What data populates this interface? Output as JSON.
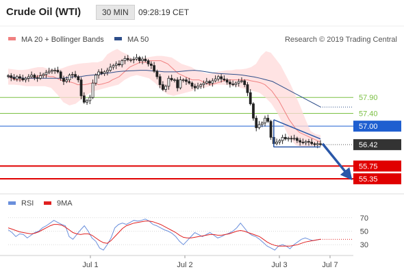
{
  "header": {
    "symbol": "Crude Oil (WTI)",
    "timeframe": "30 MIN",
    "time": "09:28:19 CET"
  },
  "legend": {
    "items": [
      {
        "label": "MA 20 + Bollinger Bands",
        "color": "#f08080"
      },
      {
        "label": "MA 50",
        "color": "#2e4e8a"
      }
    ],
    "credit": "Research © 2019 Trading Central"
  },
  "rsi_legend": {
    "items": [
      {
        "label": "RSI",
        "color": "#6a8fdc"
      },
      {
        "label": "9MA",
        "color": "#e02020"
      }
    ]
  },
  "colors": {
    "support": "#e00000",
    "pivot": "#1f5fd0",
    "resistance": "#7bc043",
    "price": "#333333",
    "arrow": "#2a57a8"
  },
  "chart_data": [
    {
      "type": "line",
      "name": "price",
      "x_labels": [
        "Jul 1",
        "Jul 2",
        "Jul 3",
        "Jul 7"
      ],
      "ylim": [
        54.9,
        59.45
      ],
      "levels": [
        {
          "value": 57.9,
          "label": "57.90",
          "role": "resistance"
        },
        {
          "value": 57.4,
          "label": "57.40",
          "role": "resistance"
        },
        {
          "value": 57.0,
          "label": "57.00",
          "role": "pivot"
        },
        {
          "value": 56.42,
          "label": "56.42",
          "role": "last-price"
        },
        {
          "value": 55.75,
          "label": "55.75",
          "role": "support"
        },
        {
          "value": 55.35,
          "label": "55.35",
          "role": "support"
        }
      ],
      "series": [
        {
          "name": "Price",
          "values": [
            58.58,
            58.52,
            58.48,
            58.55,
            58.5,
            58.45,
            58.5,
            58.55,
            58.6,
            58.52,
            58.5,
            58.58,
            58.62,
            58.68,
            58.72,
            58.75,
            58.75,
            58.7,
            58.5,
            58.4,
            58.45,
            58.6,
            58.62,
            58.55,
            58.45,
            57.95,
            57.75,
            57.8,
            57.9,
            58.35,
            58.6,
            58.7,
            58.65,
            58.7,
            58.75,
            58.85,
            58.9,
            58.95,
            58.92,
            59.05,
            59.12,
            59.08,
            59.08,
            59.1,
            59.15,
            59.05,
            59.1,
            59.05,
            58.95,
            58.9,
            58.72,
            58.55,
            58.3,
            58.15,
            58.25,
            58.5,
            58.45,
            58.45,
            58.2,
            58.45,
            58.45,
            58.4,
            58.35,
            58.25,
            58.2,
            58.25,
            58.3,
            58.35,
            58.4,
            58.35,
            58.42,
            58.48,
            58.55,
            58.48,
            58.45,
            58.38,
            58.32,
            58.3,
            58.35,
            58.4,
            58.42,
            58.3,
            58.05,
            57.7,
            57.25,
            56.95,
            57.05,
            57.1,
            57.25,
            57.15,
            56.65,
            56.45,
            56.5,
            56.55,
            56.65,
            56.6,
            56.62,
            56.6,
            56.62,
            56.55,
            56.5,
            56.48,
            56.52,
            56.5,
            56.45,
            56.42,
            56.45,
            56.42
          ]
        },
        {
          "name": "MA 20",
          "values": [
            58.55,
            58.5,
            58.45,
            58.45,
            58.45,
            58.48,
            58.5,
            58.5,
            58.55,
            58.58,
            58.6,
            58.58,
            58.55,
            58.55,
            58.5,
            58.45,
            58.42,
            58.4,
            58.38,
            58.35,
            58.3,
            58.3,
            58.3,
            58.32,
            58.35,
            58.35,
            58.3,
            58.32,
            58.35,
            58.38,
            58.45,
            58.5,
            58.55,
            58.65,
            58.75,
            58.85,
            58.9,
            58.95,
            59.0,
            59.0,
            59.0,
            59.05,
            59.05,
            59.05,
            59.05,
            59.0,
            58.95,
            58.85,
            58.75,
            58.65,
            58.6,
            58.55,
            58.5,
            58.45,
            58.45,
            58.45,
            58.4,
            58.35,
            58.3,
            58.32,
            58.35,
            58.38,
            58.42,
            58.45,
            58.45,
            58.45,
            58.45,
            58.45,
            58.45,
            58.45,
            58.42,
            58.4,
            58.38,
            58.35,
            58.3,
            58.2,
            58.1,
            57.95,
            57.8,
            57.6,
            57.4,
            57.2,
            57.05,
            56.9,
            56.8,
            56.75,
            56.7,
            56.65,
            56.6,
            56.55,
            56.5
          ]
        },
        {
          "name": "MA 50",
          "values": [
            58.55,
            58.53,
            58.51,
            58.5,
            58.5,
            58.5,
            58.5,
            58.5,
            58.5,
            58.5,
            58.52,
            58.55,
            58.55,
            58.58,
            58.6,
            58.62,
            58.65,
            58.67,
            58.7,
            58.72,
            58.73,
            58.74,
            58.75,
            58.75,
            58.73,
            58.72,
            58.7,
            58.7,
            58.7,
            58.72,
            58.74,
            58.75,
            58.73,
            58.7,
            58.67,
            58.65,
            58.64,
            58.63,
            58.62,
            58.6,
            58.57,
            58.54,
            58.5,
            58.45,
            58.4,
            58.3,
            58.2,
            58.1,
            58.0,
            57.9,
            57.8,
            57.7,
            57.6
          ]
        },
        {
          "name": "Bollinger upper",
          "values": [
            58.8,
            58.78,
            58.76,
            58.76,
            58.78,
            58.82,
            58.85,
            58.85,
            58.8,
            58.78,
            58.78,
            58.82,
            58.88,
            58.92,
            58.95,
            58.97,
            58.98,
            59.0,
            59.0,
            59.05,
            59.25,
            59.35,
            59.42,
            59.32,
            59.25,
            59.12,
            59.1,
            59.12,
            59.15,
            59.18,
            59.2,
            59.2,
            59.18,
            59.15,
            59.05,
            58.95,
            58.9,
            58.85,
            58.75,
            58.7,
            58.65,
            58.65,
            58.7,
            58.72,
            58.75,
            58.75,
            58.78,
            58.78,
            58.8,
            58.85,
            58.95,
            59.2,
            59.35,
            59.3,
            59.1,
            58.9,
            58.6,
            58.3,
            57.95,
            57.6,
            57.2,
            56.85,
            56.75,
            56.72
          ]
        },
        {
          "name": "Bollinger lower",
          "values": [
            58.3,
            58.3,
            58.28,
            58.25,
            58.25,
            58.25,
            58.25,
            58.2,
            58.0,
            57.75,
            57.65,
            57.7,
            57.85,
            58.0,
            58.1,
            58.15,
            58.2,
            58.25,
            58.3,
            58.45,
            58.55,
            58.6,
            58.55,
            58.5,
            58.35,
            58.15,
            58.0,
            57.95,
            58.0,
            58.05,
            58.1,
            58.2,
            58.2,
            58.25,
            58.3,
            58.3,
            58.28,
            58.25,
            58.2,
            58.15,
            58.1,
            58.05,
            57.9,
            57.7,
            57.4,
            57.0,
            56.6,
            56.4,
            56.35,
            56.35,
            56.38,
            56.4
          ]
        }
      ]
    },
    {
      "type": "line",
      "name": "RSI panel",
      "y_ticks": [
        70,
        50,
        30
      ],
      "ylim": [
        15,
        85
      ],
      "series": [
        {
          "name": "RSI",
          "values": [
            52,
            48,
            42,
            46,
            45,
            40,
            44,
            48,
            50,
            55,
            58,
            62,
            66,
            63,
            60,
            58,
            42,
            38,
            45,
            52,
            58,
            50,
            40,
            35,
            25,
            22,
            30,
            40,
            55,
            60,
            62,
            60,
            63,
            66,
            65,
            66,
            68,
            65,
            60,
            58,
            55,
            52,
            50,
            47,
            42,
            35,
            30,
            36,
            42,
            48,
            45,
            42,
            45,
            48,
            44,
            40,
            42,
            45,
            47,
            50,
            55,
            62,
            55,
            48,
            44,
            42,
            38,
            33,
            28,
            25,
            22,
            28,
            30,
            28,
            24,
            30,
            34,
            38,
            40,
            38,
            36,
            37,
            38
          ]
        },
        {
          "name": "9MA",
          "values": [
            55,
            53,
            51,
            49,
            48,
            47,
            46,
            47,
            49,
            52,
            55,
            58,
            60,
            60,
            59,
            56,
            52,
            48,
            46,
            45,
            46,
            46,
            44,
            40,
            36,
            33,
            32,
            36,
            42,
            48,
            54,
            58,
            60,
            62,
            63,
            64,
            65,
            65,
            64,
            62,
            60,
            57,
            54,
            51,
            48,
            44,
            41,
            40,
            40,
            41,
            42,
            43,
            44,
            45,
            45,
            44,
            44,
            45,
            46,
            48,
            50,
            51,
            50,
            48,
            46,
            44,
            42,
            38,
            34,
            31,
            29,
            28,
            28,
            28,
            28,
            29,
            30,
            32,
            34,
            35,
            36,
            37,
            38
          ]
        }
      ]
    }
  ]
}
